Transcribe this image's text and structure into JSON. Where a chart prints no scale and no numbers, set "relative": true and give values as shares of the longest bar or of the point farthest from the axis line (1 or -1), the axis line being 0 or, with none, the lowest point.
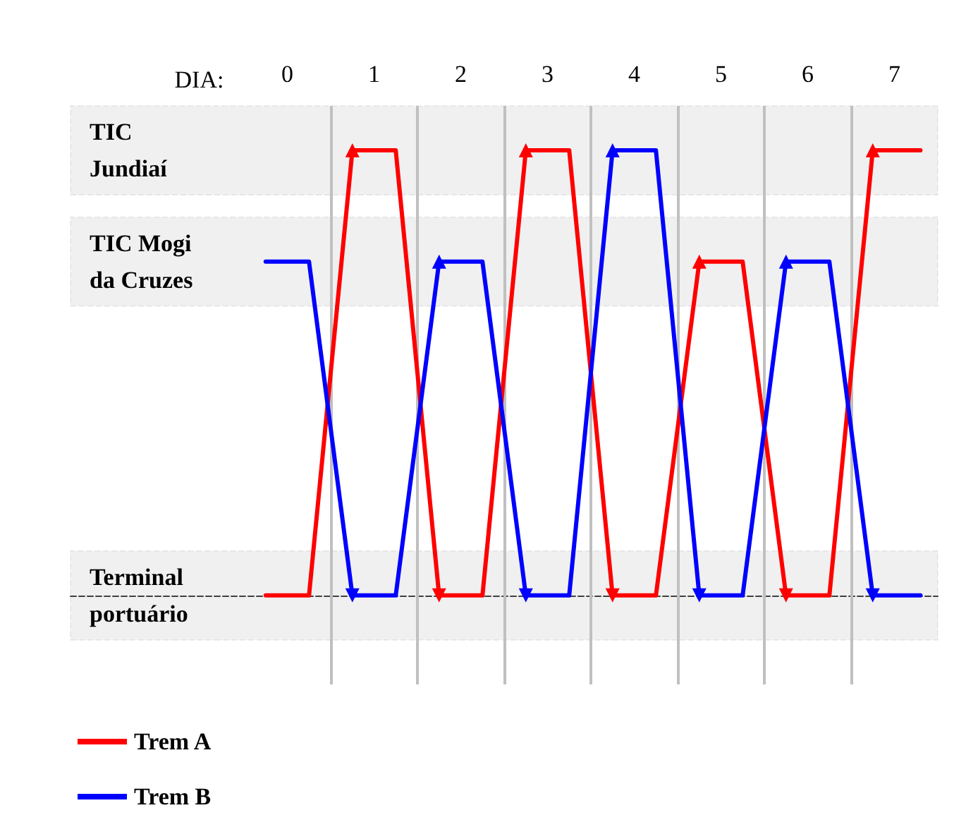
{
  "chart_data": {
    "type": "line",
    "xlabel": "DIA:",
    "x": [
      -0.25,
      0.25,
      0.75,
      1.25,
      1.75,
      2.25,
      2.75,
      3.25,
      3.75,
      4.25,
      4.75,
      5.25,
      5.75,
      6.25,
      6.75,
      7.3
    ],
    "series": [
      {
        "name": "Trem A",
        "color": "#ff0000",
        "values": [
          0,
          0,
          1,
          1,
          0,
          0,
          1,
          1,
          0,
          0,
          0.75,
          0.75,
          0,
          0,
          1,
          1
        ]
      },
      {
        "name": "Trem B",
        "color": "#0000ff",
        "values": [
          0.75,
          0.75,
          0,
          0,
          0.75,
          0.75,
          0,
          0,
          1,
          1,
          0,
          0,
          0.75,
          0.75,
          0,
          0
        ]
      }
    ],
    "xlim": [
      -2.5,
      7.5
    ],
    "xticks": [
      0,
      1,
      2,
      3,
      4,
      5,
      6,
      7
    ],
    "relative": true,
    "ref_lines": [
      {
        "axis": "x",
        "value": 0.5,
        "color": "#c0c0c0"
      },
      {
        "axis": "x",
        "value": 1.5,
        "color": "#c0c0c0"
      },
      {
        "axis": "x",
        "value": 2.5,
        "color": "#c0c0c0"
      },
      {
        "axis": "x",
        "value": 3.5,
        "color": "#c0c0c0"
      },
      {
        "axis": "x",
        "value": 4.5,
        "color": "#c0c0c0"
      },
      {
        "axis": "x",
        "value": 5.5,
        "color": "#c0c0c0"
      },
      {
        "axis": "x",
        "value": 6.5,
        "color": "#c0c0c0"
      }
    ],
    "bands": [
      {
        "axis": "y",
        "from": 0.9,
        "to": 1.1,
        "label": "TIC\nJundiaí",
        "color": "#404040"
      },
      {
        "axis": "y",
        "from": 0.65,
        "to": 0.85,
        "label": "TIC Mogi\nda Cruzes",
        "color": "#404040"
      },
      {
        "axis": "y",
        "from": -0.1,
        "to": 0.1,
        "label": "Terminal\nportuário",
        "color": "#404040"
      }
    ],
    "line_style": "solid",
    "grid": false,
    "legend": "bottom left"
  }
}
